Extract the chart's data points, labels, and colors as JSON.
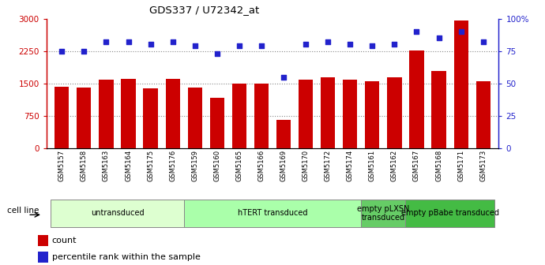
{
  "title": "GDS337 / U72342_at",
  "samples": [
    "GSM5157",
    "GSM5158",
    "GSM5163",
    "GSM5164",
    "GSM5175",
    "GSM5176",
    "GSM5159",
    "GSM5160",
    "GSM5165",
    "GSM5166",
    "GSM5169",
    "GSM5170",
    "GSM5172",
    "GSM5174",
    "GSM5161",
    "GSM5162",
    "GSM5167",
    "GSM5168",
    "GSM5171",
    "GSM5173"
  ],
  "counts": [
    1430,
    1410,
    1580,
    1600,
    1380,
    1600,
    1410,
    1160,
    1490,
    1490,
    650,
    1590,
    1640,
    1590,
    1550,
    1640,
    2270,
    1780,
    2960,
    1560
  ],
  "percentiles": [
    75,
    75,
    82,
    82,
    80,
    82,
    79,
    73,
    79,
    79,
    55,
    80,
    82,
    80,
    79,
    80,
    90,
    85,
    90,
    82
  ],
  "bar_color": "#cc0000",
  "dot_color": "#2222cc",
  "ylim_left": [
    0,
    3000
  ],
  "ylim_right": [
    0,
    100
  ],
  "yticks_left": [
    0,
    750,
    1500,
    2250,
    3000
  ],
  "yticks_right": [
    0,
    25,
    50,
    75,
    100
  ],
  "ytick_labels_left": [
    "0",
    "750",
    "1500",
    "2250",
    "3000"
  ],
  "ytick_labels_right": [
    "0",
    "25",
    "50",
    "75",
    "100%"
  ],
  "groups": [
    {
      "label": "untransduced",
      "start": 0,
      "end": 6,
      "color": "#ddffd0"
    },
    {
      "label": "hTERT transduced",
      "start": 6,
      "end": 14,
      "color": "#aaffaa"
    },
    {
      "label": "empty pLXSN\ntransduced",
      "start": 14,
      "end": 16,
      "color": "#66cc66"
    },
    {
      "label": "empty pBabe transduced",
      "start": 16,
      "end": 20,
      "color": "#44bb44"
    }
  ],
  "cell_line_label": "cell line",
  "legend_count_label": "count",
  "legend_pct_label": "percentile rank within the sample",
  "left_axis_color": "#cc0000",
  "right_axis_color": "#2222cc",
  "grid_color": "#888888"
}
